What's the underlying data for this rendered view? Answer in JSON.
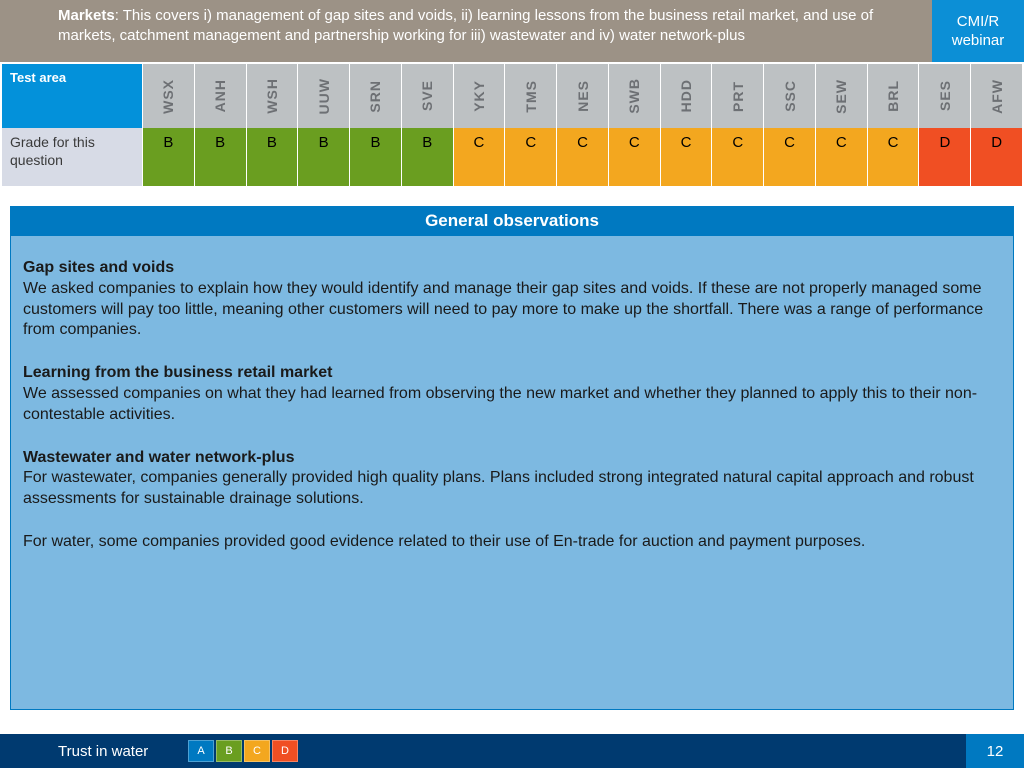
{
  "header": {
    "title_bold": "Markets",
    "title_rest": ": This covers i) management of gap sites and voids, ii) learning lessons from the business retail market, and use of markets, catchment management and partnership working for iii) wastewater and iv) water network-plus",
    "badge": "CMI/R webinar"
  },
  "colors": {
    "A": "#0079c1",
    "B": "#6a9e20",
    "C": "#f3a71f",
    "D": "#f04f23",
    "header_bg": "#9c9286",
    "col_hdr_bg": "#bdc1c3",
    "row_label_bg": "#d7dbe6",
    "footer_bg": "#003a70",
    "section_bg": "#0079c1",
    "obs_bg": "#7db9e1"
  },
  "table": {
    "test_area_label": "Test area",
    "row_label": "Grade for this question",
    "companies": [
      {
        "code": "WSX",
        "grade": "B"
      },
      {
        "code": "ANH",
        "grade": "B"
      },
      {
        "code": "WSH",
        "grade": "B"
      },
      {
        "code": "UUW",
        "grade": "B"
      },
      {
        "code": "SRN",
        "grade": "B"
      },
      {
        "code": "SVE",
        "grade": "B"
      },
      {
        "code": "YKY",
        "grade": "C"
      },
      {
        "code": "TMS",
        "grade": "C"
      },
      {
        "code": "NES",
        "grade": "C"
      },
      {
        "code": "SWB",
        "grade": "C"
      },
      {
        "code": "HDD",
        "grade": "C"
      },
      {
        "code": "PRT",
        "grade": "C"
      },
      {
        "code": "SSC",
        "grade": "C"
      },
      {
        "code": "SEW",
        "grade": "C"
      },
      {
        "code": "BRL",
        "grade": "C"
      },
      {
        "code": "SES",
        "grade": "D"
      },
      {
        "code": "AFW",
        "grade": "D"
      }
    ]
  },
  "section_title": "General observations",
  "observations": [
    {
      "heading": "Gap sites and voids",
      "text": "We asked companies to explain how they would identify and manage their gap sites and voids. If these are not properly managed some customers will pay too little, meaning other customers will need to pay more to make up the shortfall. There was a range of performance from companies."
    },
    {
      "heading": "Learning from the business retail market",
      "text": "We assessed companies on what they had learned from observing the new market and whether they planned to apply this to their non-contestable activities."
    },
    {
      "heading": "Wastewater and water network-plus",
      "text": "For wastewater, companies generally provided high quality plans. Plans included strong integrated natural capital approach and robust assessments for sustainable drainage solutions."
    },
    {
      "heading": "",
      "text": "For water, some companies provided good evidence related to their use of En-trade for auction and payment purposes."
    }
  ],
  "footer": {
    "label": "Trust in water",
    "legend": [
      "A",
      "B",
      "C",
      "D"
    ],
    "page": "12"
  }
}
